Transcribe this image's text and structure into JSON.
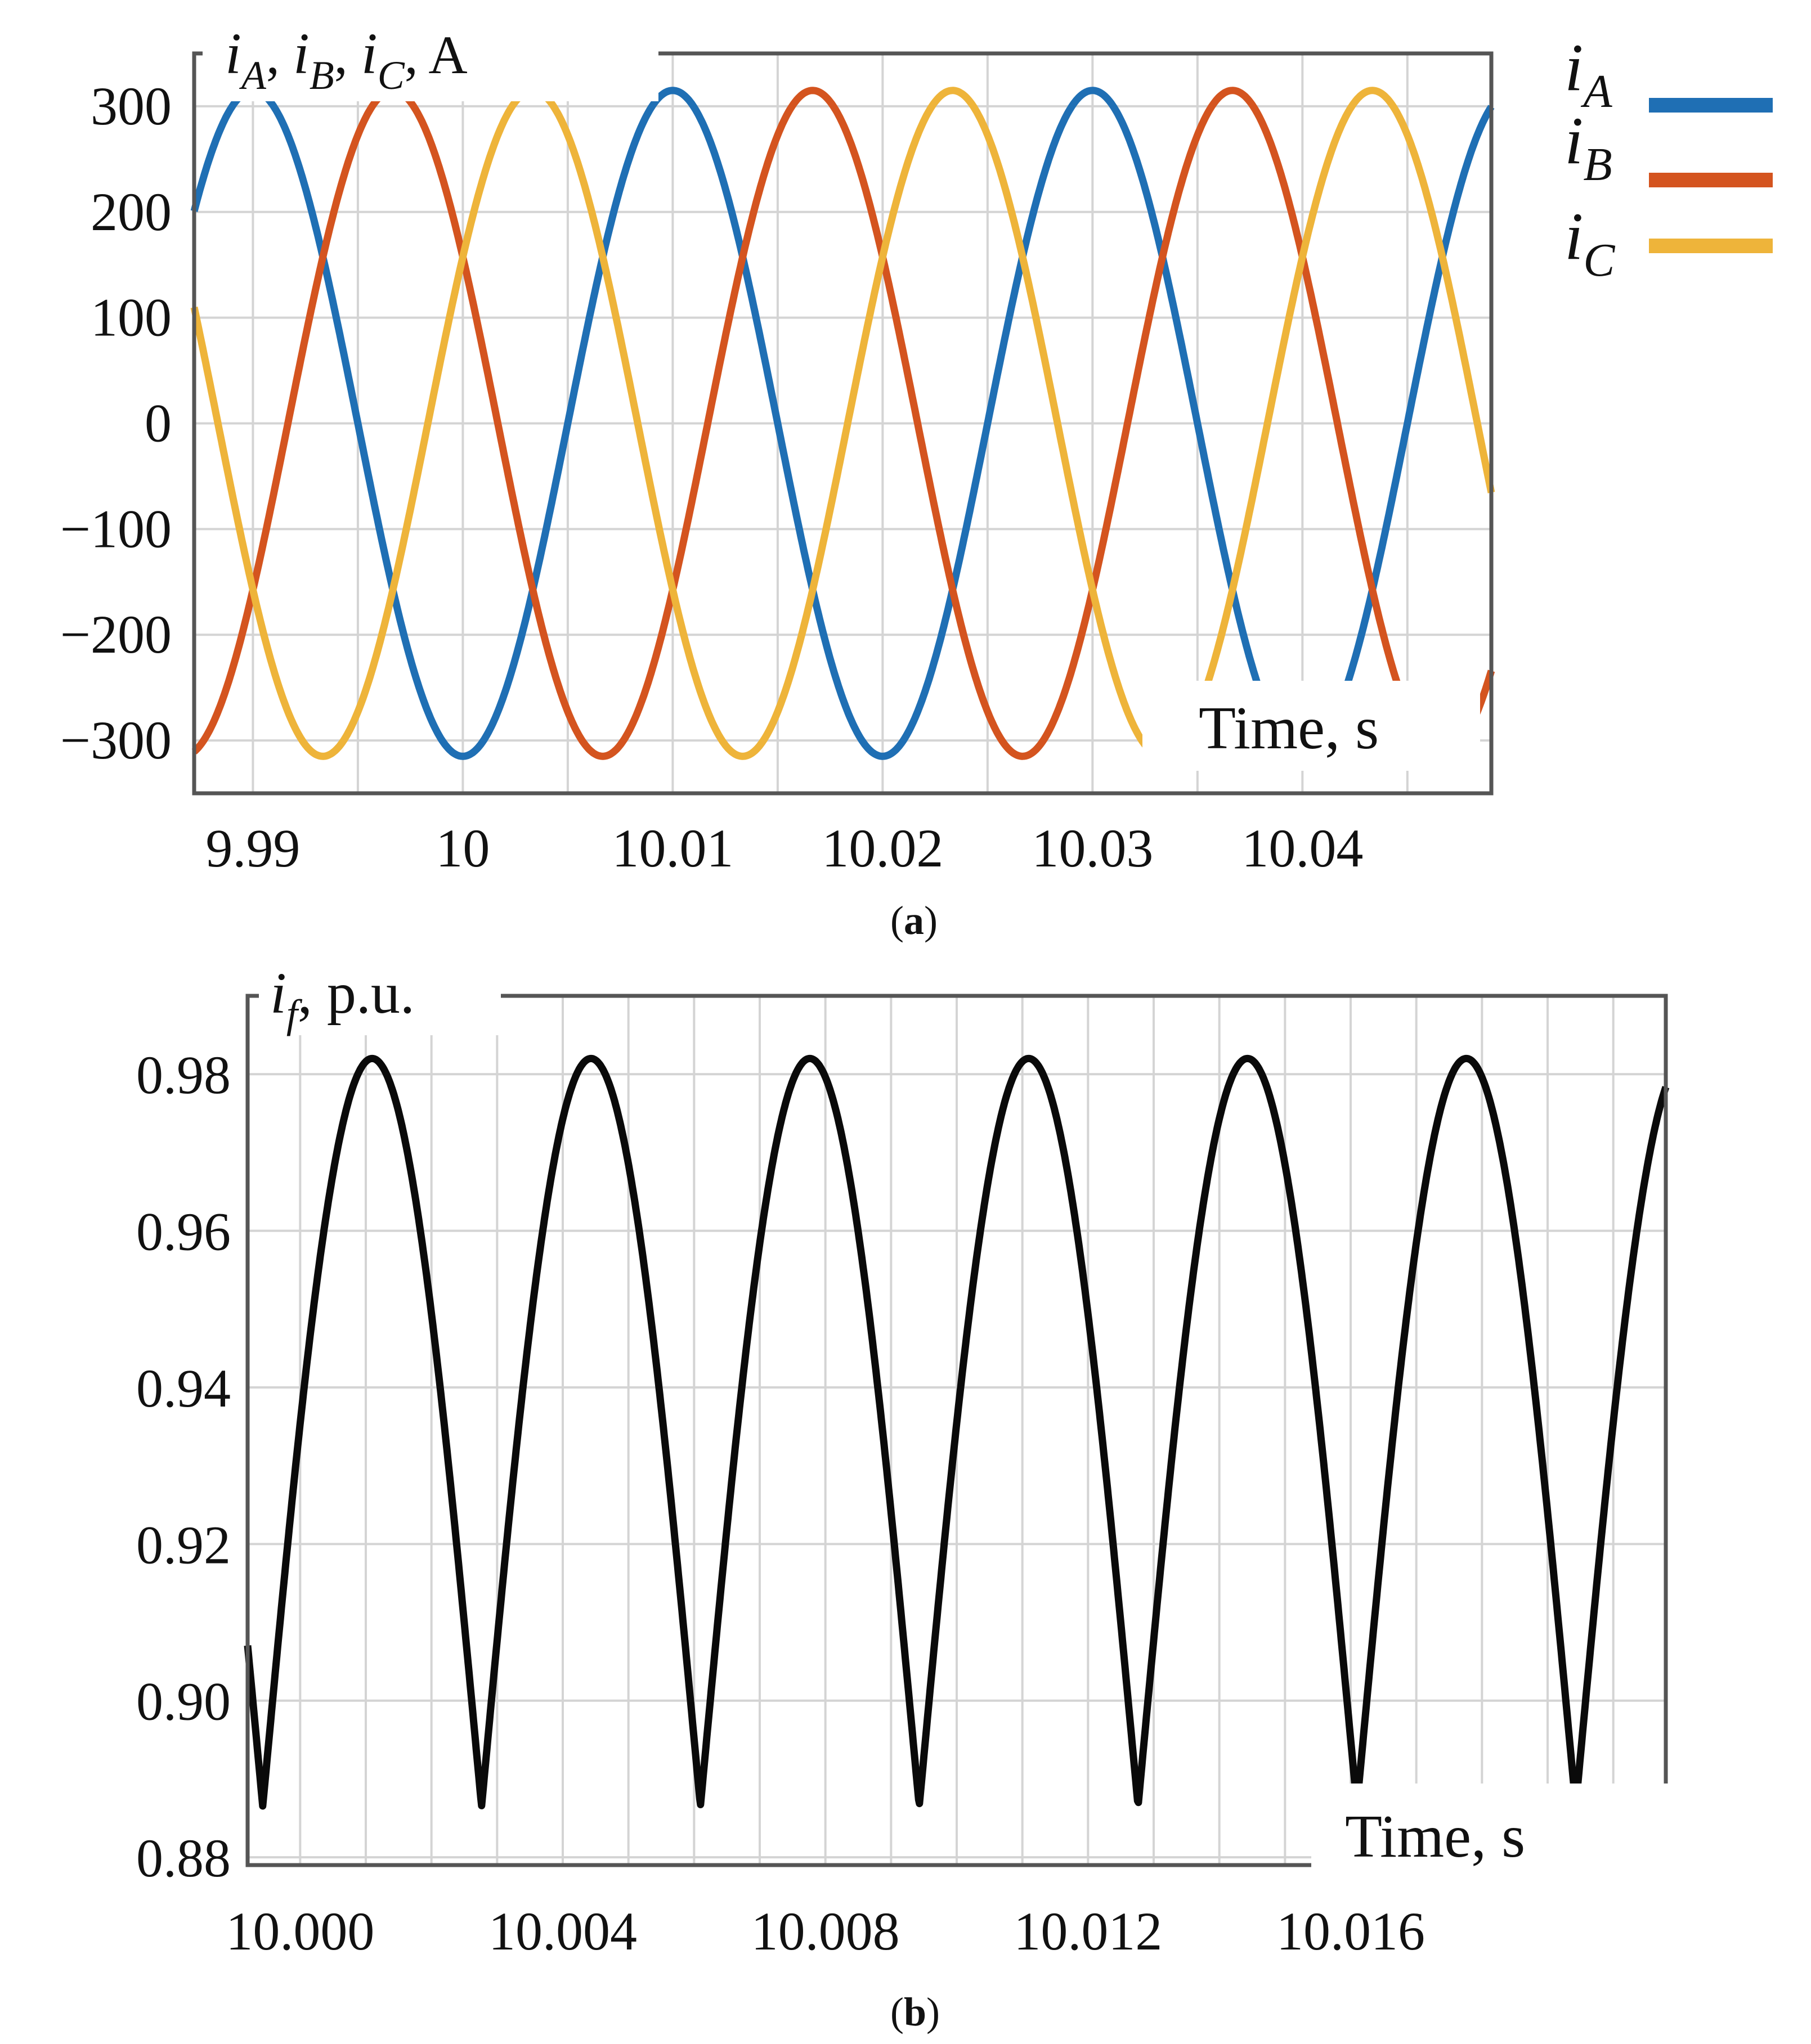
{
  "charts": [
    {
      "type": "line",
      "panel_label": "a",
      "y_label": {
        "symbol": "i",
        "subs": [
          "A",
          "B",
          "C"
        ],
        "unit": "A"
      },
      "x_label": "Time, s",
      "xlim": [
        9.9872,
        10.049
      ],
      "ylim": [
        -350,
        350
      ],
      "x_ticks": [
        9.99,
        10.0,
        10.01,
        10.02,
        10.03,
        10.04
      ],
      "x_tick_labels": [
        "9.99",
        "10",
        "10.01",
        "10.02",
        "10.03",
        "10.04"
      ],
      "y_ticks": [
        300,
        200,
        100,
        0,
        -100,
        -200,
        -300
      ],
      "y_tick_labels": [
        "300",
        "200",
        "100",
        "0",
        "−100",
        "−200",
        "−300"
      ],
      "grid": true,
      "legend_position": "right-outside",
      "series": [
        {
          "name_symbol": "i",
          "name_sub": "A",
          "color": "#1f6fb4",
          "amplitude": 315,
          "frequency_hz": 50,
          "phase_deg": -90,
          "t0": 10.0
        },
        {
          "name_symbol": "i",
          "name_sub": "B",
          "color": "#d4541f",
          "amplitude": 315,
          "frequency_hz": 50,
          "phase_deg": -210,
          "t0": 10.0
        },
        {
          "name_symbol": "i",
          "name_sub": "C",
          "color": "#eeb43a",
          "amplitude": 315,
          "frequency_hz": 50,
          "phase_deg": 30,
          "t0": 10.0
        }
      ]
    },
    {
      "type": "line",
      "panel_label": "b",
      "y_label": {
        "symbol": "i",
        "sub": "f",
        "unit": "p.u."
      },
      "x_label": "Time, s",
      "xlim": [
        9.9992,
        10.0208
      ],
      "ylim": [
        0.879,
        0.99
      ],
      "x_ticks": [
        10.0,
        10.004,
        10.008,
        10.012,
        10.016
      ],
      "x_tick_labels": [
        "10.000",
        "10.004",
        "10.008",
        "10.012",
        "10.016"
      ],
      "y_ticks": [
        0.98,
        0.96,
        0.94,
        0.92,
        0.9,
        0.88
      ],
      "y_tick_labels": [
        "0.98",
        "0.96",
        "0.94",
        "0.92",
        "0.90",
        "0.88"
      ],
      "grid": true,
      "series": [
        {
          "name": "",
          "color": "#0a0a0a",
          "mean": 0.9342,
          "amplitude": 0.0477,
          "period_s": 0.003333,
          "first_minimum_s": 9.99943,
          "waveform": "rectified-sine ripple",
          "max": 0.982,
          "min": 0.8865
        }
      ]
    }
  ]
}
